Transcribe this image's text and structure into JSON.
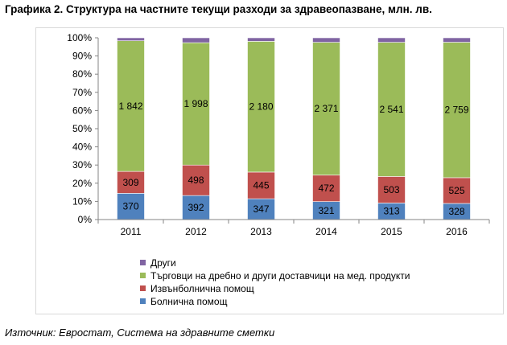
{
  "title": "Графика 2. Структура на частните текущи разходи за здравеопазване, млн. лв.",
  "source": "Източник: Евростат, Система на здравните сметки",
  "chart_data": {
    "type": "bar",
    "stacked": true,
    "normalized": true,
    "categories": [
      "2011",
      "2012",
      "2013",
      "2014",
      "2015",
      "2016"
    ],
    "series": [
      {
        "name": "Болнична помощ",
        "color": "#4f81bd",
        "values": [
          370,
          392,
          347,
          321,
          313,
          328
        ],
        "labels": [
          "370",
          "392",
          "347",
          "321",
          "313",
          "328"
        ]
      },
      {
        "name": "Извънболнична помощ",
        "color": "#c0504d",
        "values": [
          309,
          498,
          445,
          472,
          503,
          525
        ],
        "labels": [
          "309",
          "498",
          "445",
          "472",
          "503",
          "525"
        ]
      },
      {
        "name": "Търговци на дребно и други доставчици на мед. продукти",
        "color": "#9bbb59",
        "values": [
          1842,
          1998,
          2180,
          2371,
          2541,
          2759
        ],
        "labels": [
          "1 842",
          "1 998",
          "2 180",
          "2 371",
          "2 541",
          "2 759"
        ]
      },
      {
        "name": "Други",
        "color": "#8064a2",
        "values": [
          42,
          80,
          59,
          81,
          86,
          91
        ]
      }
    ],
    "yticks": [
      "0%",
      "10%",
      "20%",
      "30%",
      "40%",
      "50%",
      "60%",
      "70%",
      "80%",
      "90%",
      "100%"
    ],
    "ylim": [
      0,
      100
    ],
    "grid": false,
    "legend_position": "bottom",
    "legend_order": [
      3,
      2,
      1,
      0
    ]
  }
}
